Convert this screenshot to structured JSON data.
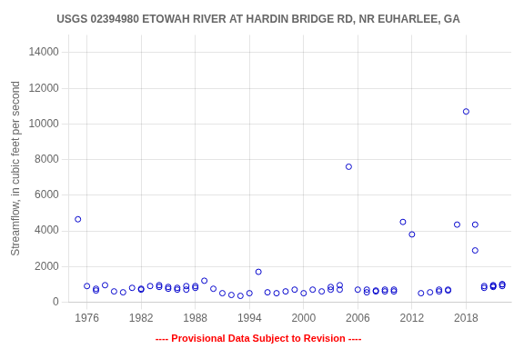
{
  "chart_data": {
    "type": "scatter",
    "title": "USGS 02394980 ETOWAH RIVER AT HARDIN BRIDGE RD, NR EUHARLEE, GA",
    "ylabel": "Streamflow, in cubic feet per second",
    "footnote": "---- Provisional Data Subject to Revision ----",
    "xlim": [
      1974,
      2023
    ],
    "ylim": [
      0,
      15000
    ],
    "xticks": [
      1976,
      1982,
      1988,
      1994,
      2000,
      2006,
      2012,
      2018
    ],
    "yticks": [
      0,
      2000,
      4000,
      6000,
      8000,
      10000,
      12000,
      14000
    ],
    "color": "#0000CC",
    "marker": "circle",
    "grid": true,
    "x": [
      1975,
      1976,
      1977,
      1977,
      1978,
      1979,
      1980,
      1981,
      1982,
      1982,
      1983,
      1984,
      1984,
      1985,
      1985,
      1986,
      1986,
      1987,
      1987,
      1988,
      1988,
      1989,
      1990,
      1991,
      1992,
      1993,
      1994,
      1995,
      1996,
      1997,
      1998,
      1999,
      2000,
      2001,
      2002,
      2003,
      2003,
      2004,
      2004,
      2005,
      2006,
      2007,
      2007,
      2008,
      2008,
      2009,
      2009,
      2010,
      2010,
      2011,
      2012,
      2013,
      2014,
      2015,
      2015,
      2016,
      2016,
      2017,
      2018,
      2019,
      2019,
      2020,
      2020,
      2021,
      2021,
      2021,
      2022,
      2022,
      2022
    ],
    "values": [
      4650,
      900,
      750,
      650,
      950,
      600,
      550,
      800,
      700,
      750,
      900,
      950,
      850,
      750,
      850,
      700,
      800,
      700,
      900,
      800,
      900,
      1200,
      750,
      500,
      400,
      350,
      500,
      1700,
      550,
      500,
      600,
      700,
      500,
      700,
      600,
      850,
      700,
      950,
      700,
      7600,
      700,
      550,
      700,
      600,
      650,
      700,
      600,
      700,
      600,
      4500,
      3800,
      500,
      550,
      700,
      600,
      700,
      650,
      4350,
      10700,
      2900,
      4350,
      900,
      800,
      900,
      850,
      950,
      1000,
      900,
      1000
    ]
  }
}
